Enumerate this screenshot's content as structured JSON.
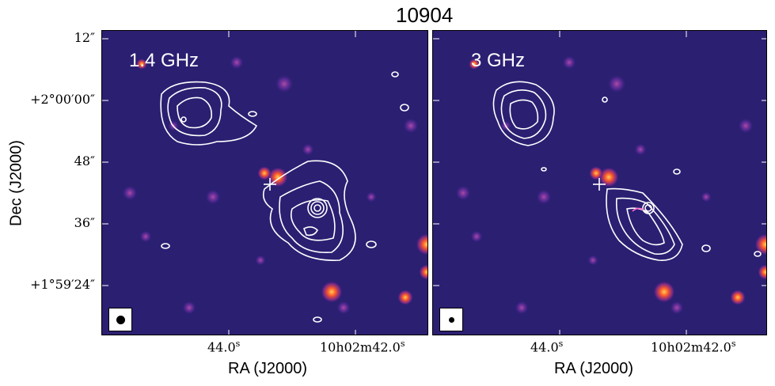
{
  "figure": {
    "title": "10904",
    "panels": [
      {
        "band": "1.4 GHz"
      },
      {
        "band": "3 GHz"
      }
    ],
    "y_axis": {
      "label": "Dec (J2000)",
      "ticks": [
        "12″",
        "+2°00′00″",
        "48″",
        "36″",
        "+1°59′24″"
      ]
    },
    "x_axis": {
      "label": "RA (J2000)",
      "ticks": [
        "44.0",
        "10h02m42.0"
      ],
      "tick_units": "s"
    },
    "colors": {
      "background": "#2a1f6e",
      "contour": "#ffffff",
      "hotspot": "#ff5a2a"
    }
  }
}
